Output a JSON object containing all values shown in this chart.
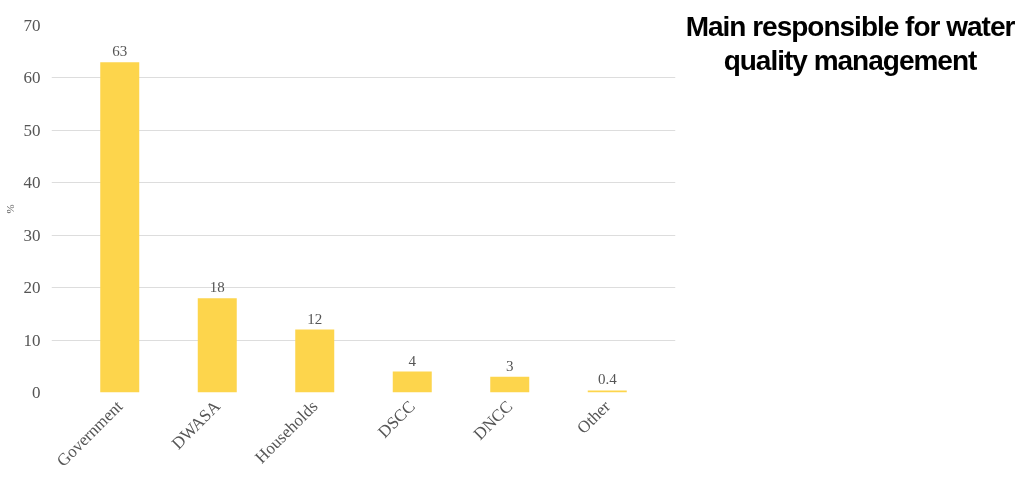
{
  "chart_data": {
    "type": "bar",
    "title": "Main responsible for water quality management",
    "ylabel": "%",
    "categories": [
      "Government",
      "DWASA",
      "Households",
      "DSCC",
      "DNCC",
      "Other"
    ],
    "values": [
      63,
      18,
      12,
      4,
      3,
      0.4
    ],
    "color": "#fdd54c",
    "ylim": [
      0,
      70
    ],
    "yticks": [
      0,
      10,
      20,
      30,
      40,
      50,
      60,
      70
    ],
    "grid": "y",
    "data_labels": true
  }
}
